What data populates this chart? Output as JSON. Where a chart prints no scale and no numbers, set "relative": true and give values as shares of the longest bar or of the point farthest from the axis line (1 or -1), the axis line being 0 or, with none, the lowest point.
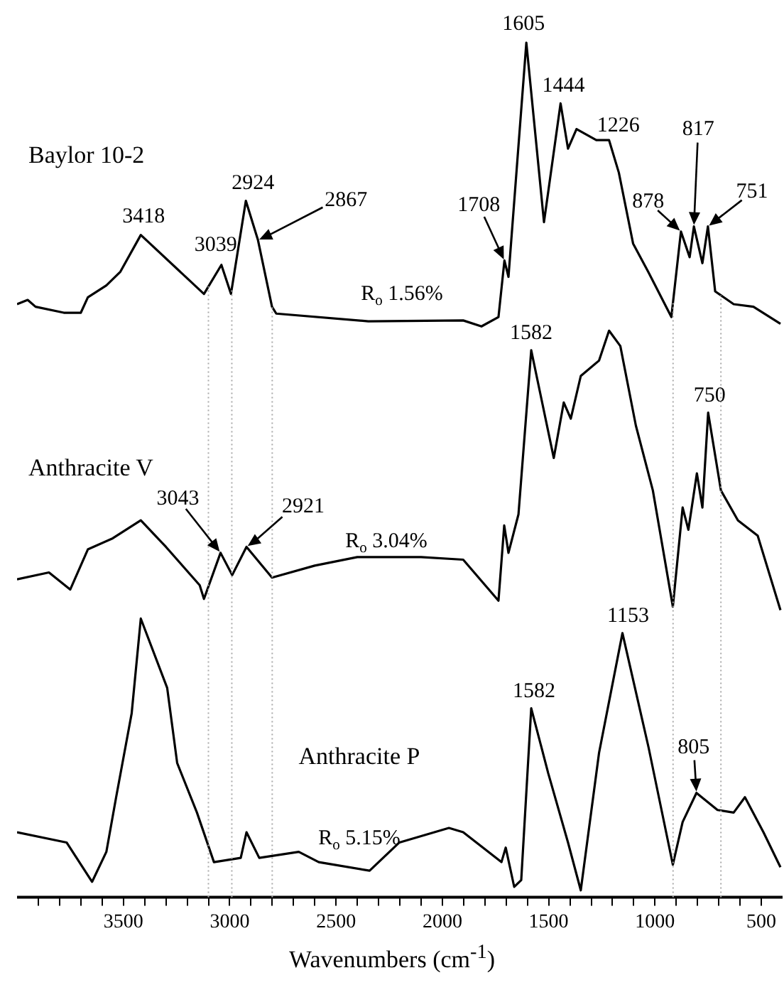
{
  "chart_data": {
    "type": "line",
    "relative": true,
    "xlabel": "Wavenumbers (cm$^{-1}$)",
    "xlim": [
      4000,
      400
    ],
    "xticks": [
      {
        "value": 3900,
        "label": null
      },
      {
        "value": 3800,
        "label": null
      },
      {
        "value": 3700,
        "label": null
      },
      {
        "value": 3600,
        "label": null
      },
      3500,
      {
        "value": 3400,
        "label": null
      },
      {
        "value": 3300,
        "label": null
      },
      {
        "value": 3200,
        "label": null
      },
      {
        "value": 3100,
        "label": null
      },
      3000,
      {
        "value": 2900,
        "label": null
      },
      {
        "value": 2800,
        "label": null
      },
      {
        "value": 2700,
        "label": null
      },
      {
        "value": 2600,
        "label": null
      },
      2500,
      {
        "value": 2400,
        "label": null
      },
      {
        "value": 2300,
        "label": null
      },
      {
        "value": 2200,
        "label": null
      },
      {
        "value": 2100,
        "label": null
      },
      2000,
      {
        "value": 1900,
        "label": null
      },
      {
        "value": 1800,
        "label": null
      },
      {
        "value": 1700,
        "label": null
      },
      {
        "value": 1600,
        "label": null
      },
      1500,
      {
        "value": 1400,
        "label": null
      },
      {
        "value": 1300,
        "label": null
      },
      {
        "value": 1200,
        "label": null
      },
      {
        "value": 1100,
        "label": null
      },
      1000,
      {
        "value": 900,
        "label": null
      },
      {
        "value": 800,
        "label": null
      },
      {
        "value": 700,
        "label": null
      },
      {
        "value": 600,
        "label": null
      },
      500
    ],
    "grid": false,
    "legend": false,
    "marker": "none",
    "line_style": "solid",
    "series": [
      {
        "name": "Baylor 10-2",
        "color": "#000000",
        "x": [
          4000,
          3950,
          3913,
          3780,
          3700,
          3667,
          3580,
          3514,
          3418,
          3121,
          3039,
          2994,
          2924,
          2867,
          2801,
          2781,
          2348,
          1902,
          1816,
          1736,
          1708,
          1689,
          1605,
          1522,
          1444,
          1409,
          1369,
          1276,
          1216,
          1170,
          1103,
          1030,
          923,
          878,
          837,
          817,
          777,
          751,
          717,
          630,
          537,
          410
        ],
        "values": [
          0.694,
          0.699,
          0.691,
          0.684,
          0.684,
          0.702,
          0.716,
          0.732,
          0.775,
          0.706,
          0.74,
          0.706,
          0.815,
          0.769,
          0.691,
          0.683,
          0.674,
          0.675,
          0.668,
          0.679,
          0.745,
          0.726,
          1,
          0.79,
          0.929,
          0.876,
          0.899,
          0.886,
          0.886,
          0.848,
          0.765,
          0.731,
          0.679,
          0.779,
          0.749,
          0.785,
          0.742,
          0.785,
          0.709,
          0.694,
          0.691,
          0.671
        ]
      },
      {
        "name": "Anthracite V",
        "color": "#000000",
        "x": [
          4000,
          3850,
          3750,
          3667,
          3550,
          3418,
          3300,
          3141,
          3121,
          3043,
          2988,
          2921,
          2801,
          2600,
          2400,
          2100,
          1902,
          1736,
          1709,
          1689,
          1642,
          1582,
          1476,
          1429,
          1396,
          1349,
          1263,
          1216,
          1163,
          1090,
          1010,
          916,
          870,
          843,
          803,
          777,
          750,
          690,
          610,
          517,
          410
        ],
        "values": [
          0.372,
          0.38,
          0.36,
          0.407,
          0.42,
          0.441,
          0.41,
          0.365,
          0.349,
          0.403,
          0.377,
          0.41,
          0.374,
          0.388,
          0.398,
          0.398,
          0.395,
          0.347,
          0.435,
          0.403,
          0.448,
          0.64,
          0.514,
          0.579,
          0.56,
          0.61,
          0.628,
          0.663,
          0.645,
          0.552,
          0.476,
          0.34,
          0.456,
          0.43,
          0.496,
          0.456,
          0.567,
          0.476,
          0.441,
          0.423,
          0.336
        ]
      },
      {
        "name": "Anthracite P",
        "color": "#000000",
        "x": [
          4000,
          3767,
          3647,
          3580,
          3534,
          3461,
          3418,
          3294,
          3247,
          3154,
          3074,
          2948,
          2921,
          2861,
          2675,
          2581,
          2342,
          2202,
          1969,
          1902,
          1722,
          1702,
          1662,
          1629,
          1582,
          1502,
          1409,
          1349,
          1263,
          1153,
          1030,
          916,
          870,
          805,
          706,
          630,
          577,
          490,
          410
        ],
        "values": [
          0.076,
          0.064,
          0.018,
          0.053,
          0.117,
          0.215,
          0.326,
          0.245,
          0.157,
          0.099,
          0.041,
          0.046,
          0.076,
          0.046,
          0.053,
          0.041,
          0.031,
          0.064,
          0.081,
          0.076,
          0.041,
          0.058,
          0.012,
          0.02,
          0.221,
          0.145,
          0.064,
          0.008,
          0.169,
          0.309,
          0.175,
          0.038,
          0.088,
          0.122,
          0.102,
          0.099,
          0.117,
          0.076,
          0.035
        ]
      }
    ],
    "ref_lines": [
      {
        "axis": "x",
        "value": 3100,
        "color": "#aaaaaa",
        "line_style": "dotted"
      },
      {
        "axis": "x",
        "value": 2990,
        "color": "#aaaaaa",
        "line_style": "dotted"
      },
      {
        "axis": "x",
        "value": 2800,
        "color": "#aaaaaa",
        "line_style": "dotted"
      },
      {
        "axis": "x",
        "value": 915,
        "color": "#aaaaaa",
        "line_style": "dotted"
      },
      {
        "axis": "x",
        "value": 690,
        "color": "#aaaaaa",
        "line_style": "dotted"
      }
    ],
    "annotations": [
      {
        "text": "3418",
        "x": 3418,
        "y": 0.775
      },
      {
        "text": "3039",
        "x": 3039,
        "y": 0.74
      },
      {
        "text": "2924",
        "x": 2924,
        "y": 0.815
      },
      {
        "text": "2867",
        "x": 2867,
        "y": 0.769
      },
      {
        "text": "1708",
        "x": 1708,
        "y": 0.745
      },
      {
        "text": "1605",
        "x": 1605,
        "y": 1
      },
      {
        "text": "1444",
        "x": 1444,
        "y": 0.929
      },
      {
        "text": "1226",
        "x": 1226,
        "y": 0.886
      },
      {
        "text": "878",
        "x": 878,
        "y": 0.779
      },
      {
        "text": "817",
        "x": 817,
        "y": 0.785
      },
      {
        "text": "751",
        "x": 751,
        "y": 0.785
      },
      {
        "text": "1582",
        "x": 1582,
        "y": 0.64
      },
      {
        "text": "3043",
        "x": 3043,
        "y": 0.403
      },
      {
        "text": "2921",
        "x": 2921,
        "y": 0.41
      },
      {
        "text": "750",
        "x": 750,
        "y": 0.567
      },
      {
        "text": "1582",
        "x": 1582,
        "y": 0.221
      },
      {
        "text": "1153",
        "x": 1153,
        "y": 0.309
      },
      {
        "text": "805",
        "x": 805,
        "y": 0.122
      },
      "R$_{o}$ 1.56%",
      "R$_{o}$ 3.04%",
      "R$_{o}$ 5.15%"
    ]
  }
}
